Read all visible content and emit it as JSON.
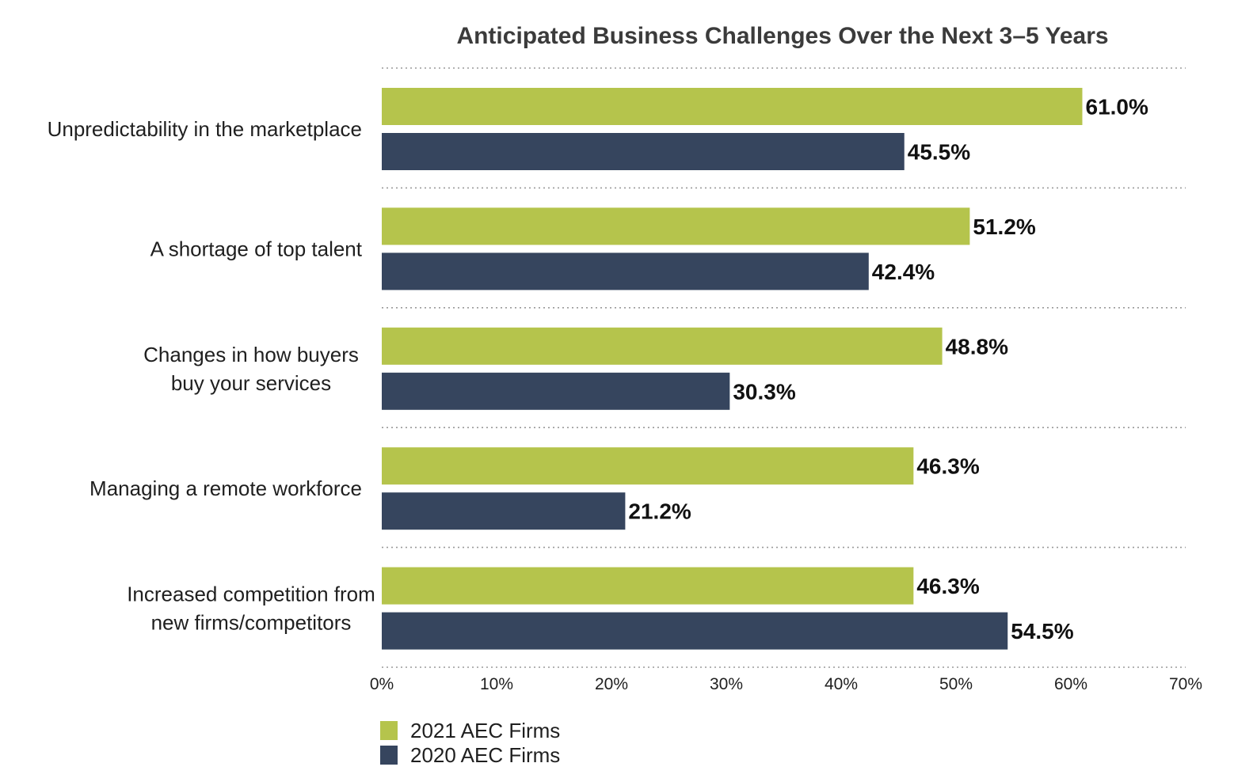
{
  "chart_data": {
    "type": "bar",
    "orientation": "horizontal",
    "title": "Anticipated Business Challenges Over the Next 3–5 Years",
    "categories": [
      [
        "Unpredictability in the marketplace"
      ],
      [
        "A shortage of top talent"
      ],
      [
        "Changes in how buyers",
        "buy your services"
      ],
      [
        "Managing a remote workforce"
      ],
      [
        "Increased competition from",
        "new firms/competitors"
      ]
    ],
    "series": [
      {
        "name": "2021 AEC Firms",
        "color": "#b5c44c",
        "values": [
          61.0,
          51.2,
          48.8,
          46.3,
          46.3
        ]
      },
      {
        "name": "2020 AEC Firms",
        "color": "#36455e",
        "values": [
          45.5,
          42.4,
          30.3,
          21.2,
          54.5
        ]
      }
    ],
    "xlim": [
      0,
      70
    ],
    "ticks": [
      0,
      10,
      20,
      30,
      40,
      50,
      60,
      70
    ],
    "tick_suffix": "%",
    "value_suffix": "%",
    "value_decimals": 1,
    "grid": "dotted separators between categories",
    "legend": "bottom-left"
  }
}
